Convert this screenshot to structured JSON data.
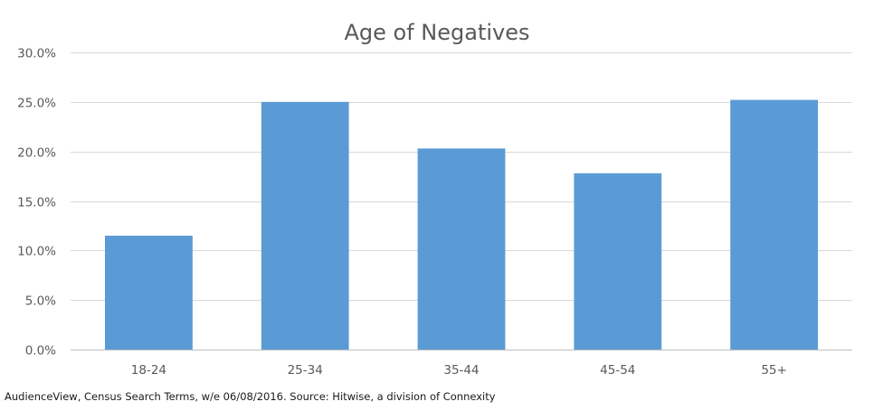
{
  "chart_data": {
    "type": "bar",
    "title": "Age of Negatives",
    "xlabel": "",
    "ylabel": "",
    "categories": [
      "18-24",
      "25-34",
      "35-44",
      "45-54",
      "55+"
    ],
    "values": [
      11.5,
      25.0,
      20.3,
      17.8,
      25.2
    ],
    "ylim": [
      0,
      30
    ],
    "yticks": [
      0,
      5,
      10,
      15,
      20,
      25,
      30
    ],
    "ytick_labels": [
      "0.0%",
      "5.0%",
      "10.0%",
      "15.0%",
      "20.0%",
      "25.0%",
      "30.0%"
    ],
    "grid": true,
    "legend": "none",
    "bar_color": "#5b9bd5"
  },
  "source_note": "AudienceView, Census Search Terms, w/e 06/08/2016. Source: Hitwise, a division of Connexity"
}
